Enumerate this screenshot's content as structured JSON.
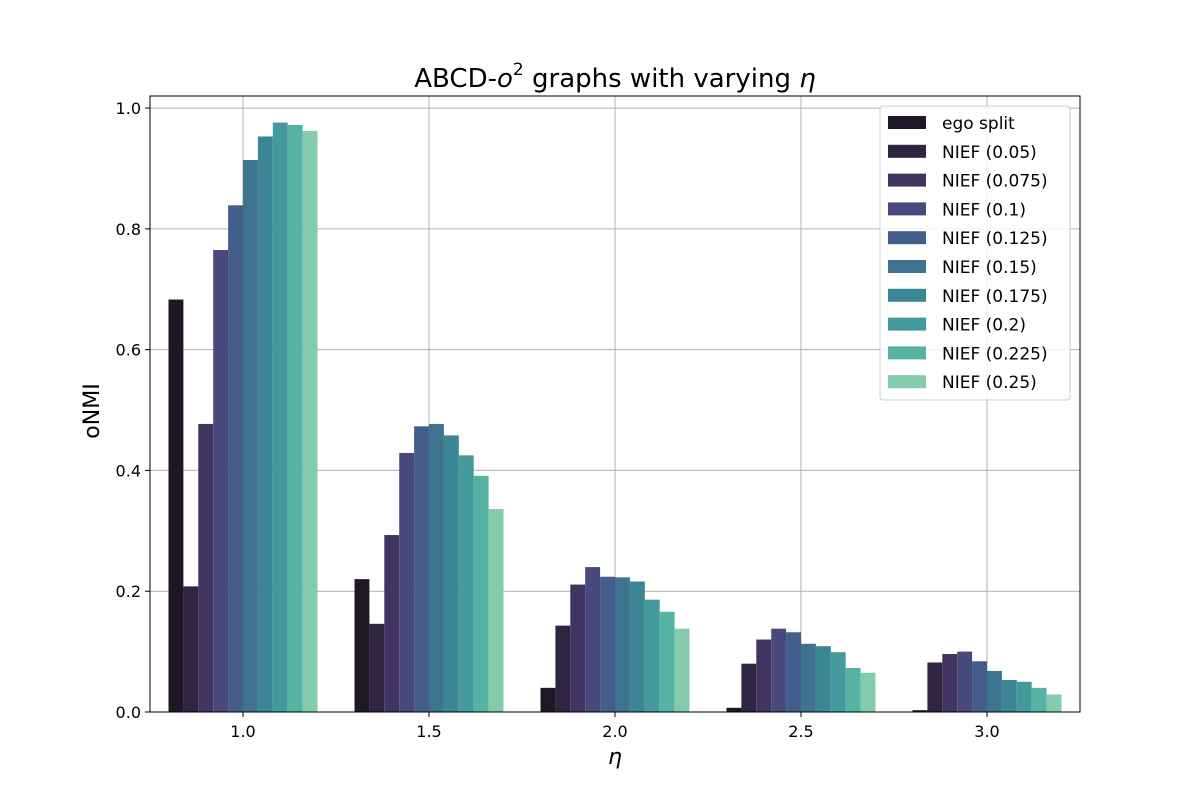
{
  "chart_data": {
    "type": "bar",
    "title": "ABCD-o² graphs with varying η",
    "title_parts": {
      "prefix": "ABCD-",
      "var": "o",
      "sup": "2",
      "suffix": " graphs with varying ",
      "var2": "η"
    },
    "xlabel": "η",
    "ylabel": "oNMI",
    "categories": [
      "1.0",
      "1.5",
      "2.0",
      "2.5",
      "3.0"
    ],
    "ylim": [
      0,
      1.02
    ],
    "yticks": [
      "0.0",
      "0.2",
      "0.4",
      "0.6",
      "0.8",
      "1.0"
    ],
    "grid": true,
    "legend_position": "top-right",
    "series": [
      {
        "name": "ego split",
        "color": "#1f1626",
        "values": [
          0.683,
          0.22,
          0.04,
          0.007,
          0.003
        ]
      },
      {
        "name": "NIEF (0.05)",
        "color": "#302540",
        "values": [
          0.208,
          0.146,
          0.143,
          0.08,
          0.082
        ]
      },
      {
        "name": "NIEF (0.075)",
        "color": "#413460",
        "values": [
          0.477,
          0.293,
          0.211,
          0.12,
          0.096
        ]
      },
      {
        "name": "NIEF (0.1)",
        "color": "#484a7e",
        "values": [
          0.765,
          0.429,
          0.24,
          0.138,
          0.1
        ]
      },
      {
        "name": "NIEF (0.125)",
        "color": "#435e8d",
        "values": [
          0.839,
          0.473,
          0.224,
          0.132,
          0.084
        ]
      },
      {
        "name": "NIEF (0.15)",
        "color": "#3e7390",
        "values": [
          0.914,
          0.477,
          0.223,
          0.113,
          0.068
        ]
      },
      {
        "name": "NIEF (0.175)",
        "color": "#3b8695",
        "values": [
          0.953,
          0.458,
          0.216,
          0.109,
          0.053
        ]
      },
      {
        "name": "NIEF (0.2)",
        "color": "#43999b",
        "values": [
          0.976,
          0.425,
          0.186,
          0.099,
          0.05
        ]
      },
      {
        "name": "NIEF (0.225)",
        "color": "#56b2a3",
        "values": [
          0.972,
          0.391,
          0.166,
          0.073,
          0.04
        ]
      },
      {
        "name": "NIEF (0.25)",
        "color": "#84cbab",
        "values": [
          0.962,
          0.336,
          0.138,
          0.065,
          0.029
        ]
      }
    ]
  }
}
